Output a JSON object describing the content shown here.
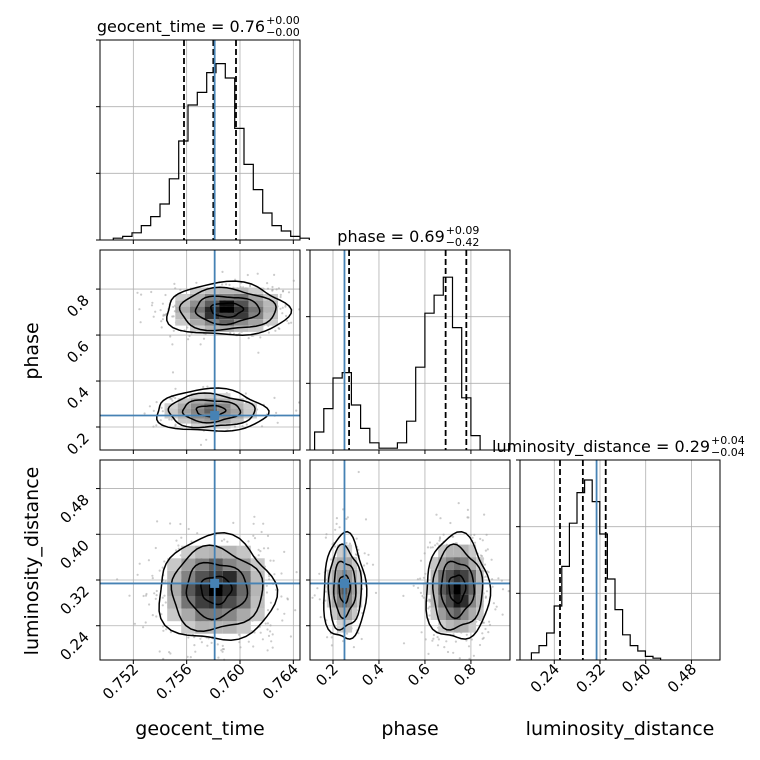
{
  "chart_data": {
    "type": "corner",
    "parameters": [
      "geocent_time",
      "phase",
      "luminosity_distance"
    ],
    "axis_labels": {
      "x": [
        "geocent_time",
        "phase",
        "luminosity_distance"
      ],
      "y": [
        "",
        "phase",
        "luminosity_distance"
      ]
    },
    "ranges": {
      "geocent_time": [
        0.7495,
        0.7645
      ],
      "phase": [
        0.1,
        0.97
      ],
      "luminosity_distance": [
        0.18,
        0.53
      ]
    },
    "ticks": {
      "geocent_time": [
        "0.752",
        "0.756",
        "0.760",
        "0.764"
      ],
      "phase": [
        "0.2",
        "0.4",
        "0.6",
        "0.8"
      ],
      "luminosity_distance": [
        "0.24",
        "0.32",
        "0.40",
        "0.48"
      ]
    },
    "titles": [
      {
        "parameter": "geocent_time",
        "prefix": "geocent_time = ",
        "median": "0.76",
        "plus": "+0.00",
        "minus": "−0.00"
      },
      {
        "parameter": "phase",
        "prefix": "phase = ",
        "median": "0.69",
        "plus": "+0.09",
        "minus": "−0.42"
      },
      {
        "parameter": "luminosity_distance",
        "prefix": "luminosity_distance = ",
        "median": "0.29",
        "plus": "+0.04",
        "minus": "−0.04"
      }
    ],
    "truths": {
      "geocent_time": 0.7581,
      "phase": 0.25,
      "luminosity_distance": 0.314
    },
    "quantiles": {
      "geocent_time": [
        0.7558,
        0.758,
        0.7597
      ],
      "phase": [
        0.27,
        0.69,
        0.78
      ],
      "luminosity_distance": [
        0.25,
        0.29,
        0.33
      ]
    },
    "histograms": {
      "geocent_time": {
        "edges_start": 0.7505,
        "edge_step": 0.0007,
        "counts": [
          0.01,
          0.02,
          0.04,
          0.08,
          0.13,
          0.2,
          0.34,
          0.55,
          0.75,
          0.82,
          0.93,
          0.98,
          0.9,
          0.62,
          0.42,
          0.28,
          0.15,
          0.08,
          0.05,
          0.02,
          0.01
        ]
      },
      "phase": {
        "edges_start": 0.12,
        "edge_step": 0.04,
        "counts": [
          0.1,
          0.23,
          0.4,
          0.43,
          0.25,
          0.12,
          0.04,
          0.01,
          0.01,
          0.04,
          0.16,
          0.46,
          0.76,
          0.86,
          0.96,
          0.68,
          0.29,
          0.08
        ]
      },
      "luminosity_distance": {
        "edges_start": 0.2,
        "edge_step": 0.0133,
        "counts": [
          0.04,
          0.08,
          0.15,
          0.3,
          0.52,
          0.76,
          0.93,
          1.0,
          0.88,
          0.7,
          0.45,
          0.28,
          0.14,
          0.08,
          0.05,
          0.02,
          0.01
        ]
      }
    },
    "grid": true,
    "colors": {
      "truth": "#4682b4",
      "contour": "#000000",
      "sample": "#a0a0a0"
    }
  }
}
